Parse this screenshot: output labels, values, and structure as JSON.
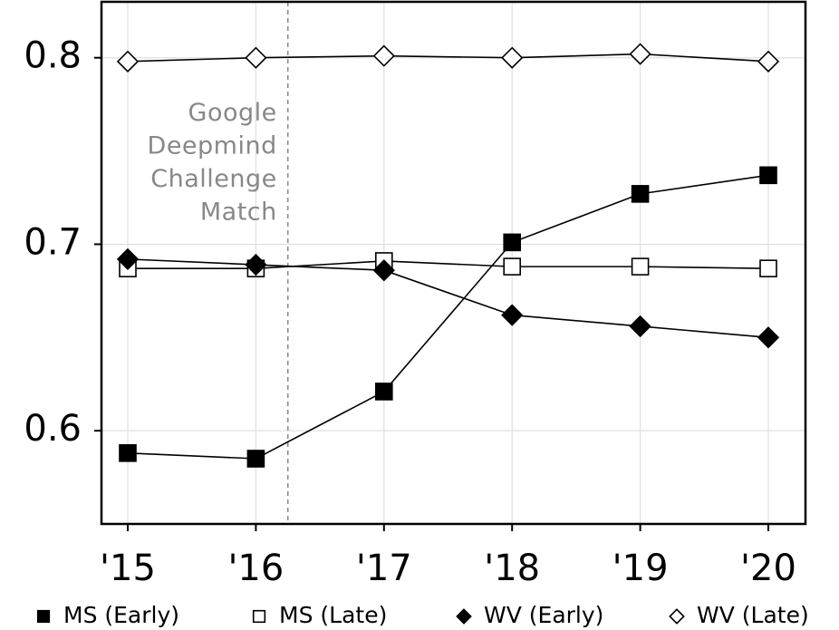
{
  "chart_data": {
    "type": "line",
    "categories": [
      "'15",
      "'16",
      "'17",
      "'18",
      "'19",
      "'20"
    ],
    "y_ticks": [
      "0.6",
      "0.7",
      "0.8"
    ],
    "ylim": [
      0.55,
      0.83
    ],
    "grid": true,
    "legend_position": "bottom",
    "annotation": {
      "lines": [
        "Google",
        "Deepmind",
        "Challenge",
        "Match"
      ],
      "x": 1.25,
      "style": "dashed-vertical"
    },
    "series": [
      {
        "name": "MS (Early)",
        "marker": "square",
        "filled": true,
        "values": [
          0.588,
          0.585,
          0.621,
          0.701,
          0.727,
          0.737
        ]
      },
      {
        "name": "MS (Late)",
        "marker": "square",
        "filled": false,
        "values": [
          0.687,
          0.687,
          0.691,
          0.688,
          0.688,
          0.687
        ]
      },
      {
        "name": "WV (Early)",
        "marker": "diamond",
        "filled": true,
        "values": [
          0.692,
          0.689,
          0.686,
          0.662,
          0.656,
          0.65
        ]
      },
      {
        "name": "WV (Late)",
        "marker": "diamond",
        "filled": false,
        "values": [
          0.798,
          0.8,
          0.801,
          0.8,
          0.802,
          0.798
        ]
      }
    ],
    "colors": {
      "line": "#000000",
      "grid": "#e0e0e0",
      "annotation": "#888888"
    }
  }
}
